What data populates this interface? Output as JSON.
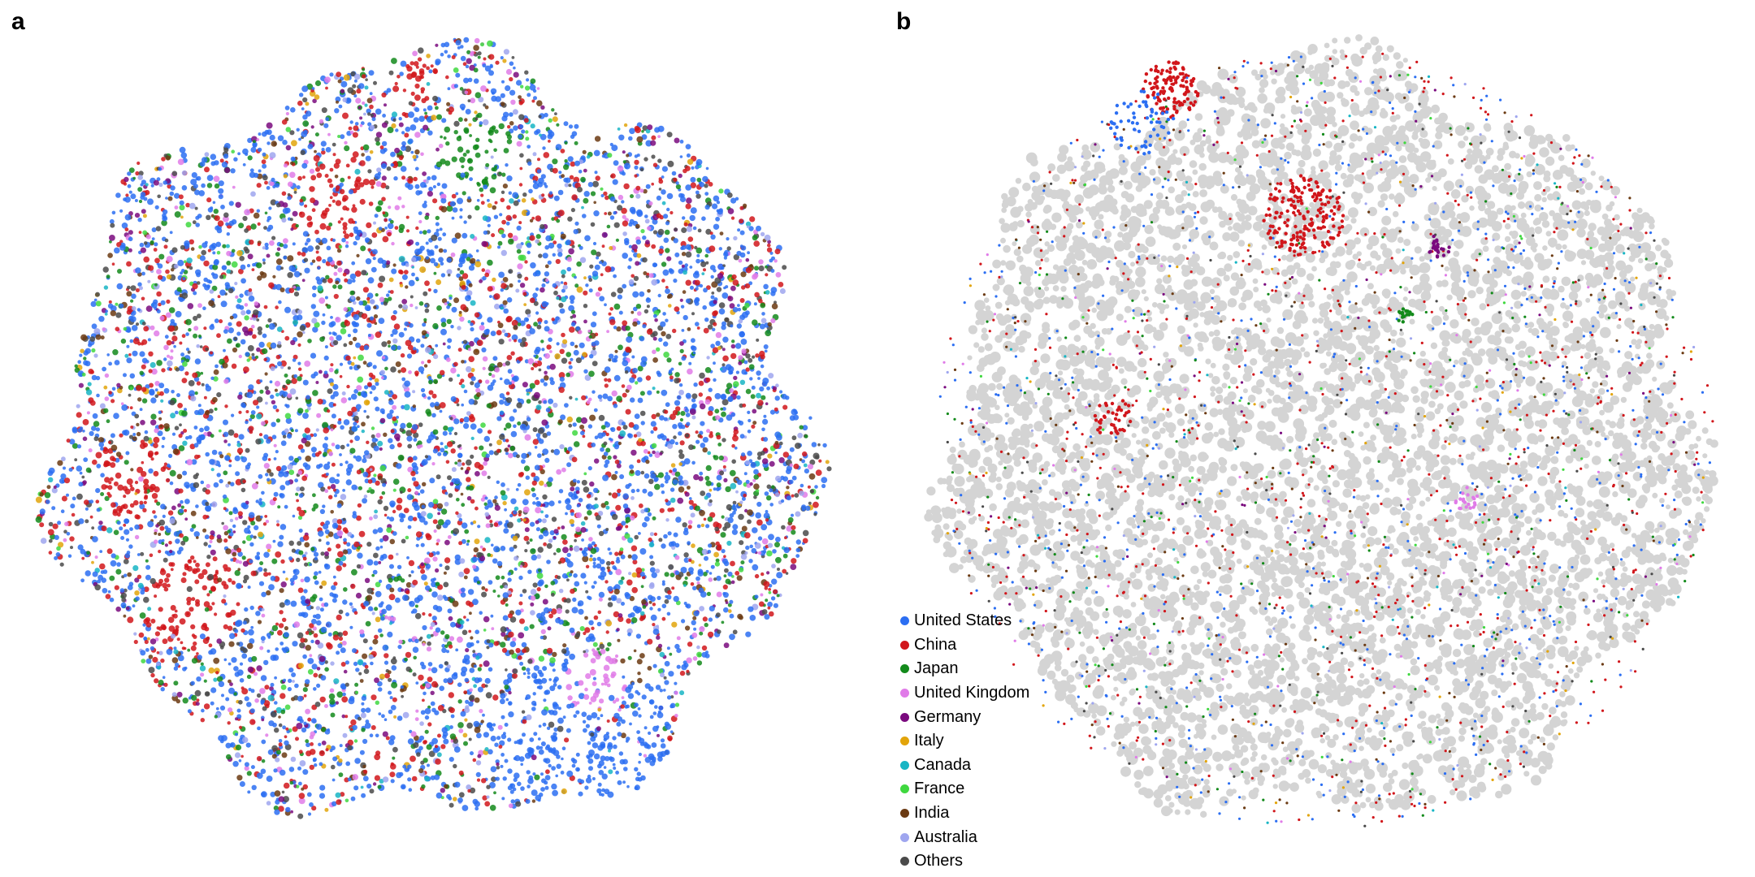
{
  "panels": {
    "a": {
      "letter": "a"
    },
    "b": {
      "letter": "b"
    }
  },
  "chart_data": [
    {
      "type": "scatter",
      "panel": "a",
      "title": "",
      "description_note": "",
      "background_color": "",
      "series": [
        {
          "name": "United States",
          "color": "#2b6ef2",
          "share": 0.42
        },
        {
          "name": "China",
          "color": "#d1161b",
          "share": 0.16
        },
        {
          "name": "Japan",
          "color": "#138a1b",
          "share": 0.08
        },
        {
          "name": "United Kingdom",
          "color": "#e07be8",
          "share": 0.05
        },
        {
          "name": "Germany",
          "color": "#7a0a7e",
          "share": 0.04
        },
        {
          "name": "Italy",
          "color": "#e2a40a",
          "share": 0.02
        },
        {
          "name": "Canada",
          "color": "#17b5c4",
          "share": 0.02
        },
        {
          "name": "France",
          "color": "#3fd83f",
          "share": 0.02
        },
        {
          "name": "India",
          "color": "#6b3a12",
          "share": 0.05
        },
        {
          "name": "Australia",
          "color": "#9fa6ef",
          "share": 0.04
        },
        {
          "name": "Others",
          "color": "#4a4a4a",
          "share": 0.1
        }
      ]
    },
    {
      "type": "scatter",
      "panel": "b",
      "background_color": "#d4d4d4",
      "legend_placement": "bottom-left",
      "series": [
        {
          "name": "United States",
          "color": "#2b6ef2"
        },
        {
          "name": "China",
          "color": "#d1161b"
        },
        {
          "name": "Japan",
          "color": "#138a1b"
        },
        {
          "name": "United Kingdom",
          "color": "#e07be8"
        },
        {
          "name": "Germany",
          "color": "#7a0a7e"
        },
        {
          "name": "Italy",
          "color": "#e2a40a"
        },
        {
          "name": "Canada",
          "color": "#17b5c4"
        },
        {
          "name": "France",
          "color": "#3fd83f"
        },
        {
          "name": "India",
          "color": "#6b3a12"
        },
        {
          "name": "Australia",
          "color": "#9fa6ef"
        },
        {
          "name": "Others",
          "color": "#4a4a4a"
        }
      ]
    }
  ],
  "legend": {
    "items": [
      {
        "label": "United States",
        "color": "#2b6ef2"
      },
      {
        "label": "China",
        "color": "#d1161b"
      },
      {
        "label": "Japan",
        "color": "#138a1b"
      },
      {
        "label": "United Kingdom",
        "color": "#e07be8"
      },
      {
        "label": "Germany",
        "color": "#7a0a7e"
      },
      {
        "label": "Italy",
        "color": "#e2a40a"
      },
      {
        "label": "Canada",
        "color": "#17b5c4"
      },
      {
        "label": "France",
        "color": "#3fd83f"
      },
      {
        "label": "India",
        "color": "#6b3a12"
      },
      {
        "label": "Australia",
        "color": "#9fa6ef"
      },
      {
        "label": "Others",
        "color": "#4a4a4a"
      }
    ]
  }
}
